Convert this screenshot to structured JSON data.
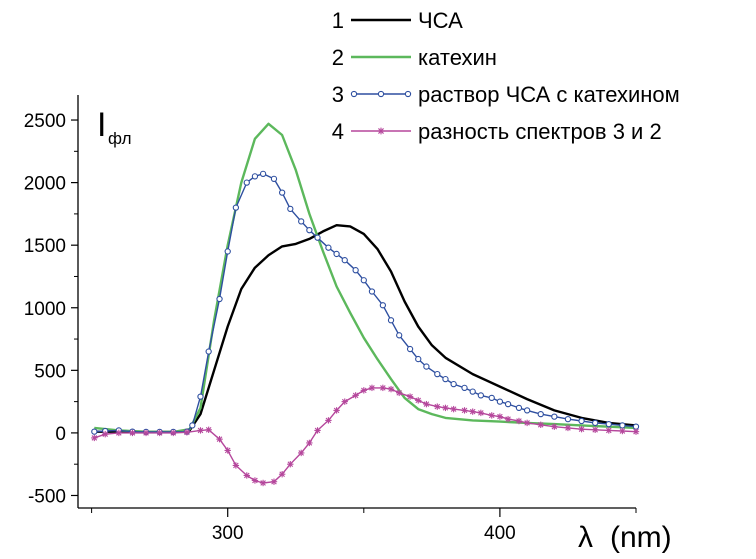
{
  "chart_data": {
    "type": "line",
    "title": "",
    "xlabel": "λ (nm)",
    "ylabel": "Iфл",
    "ylabel_main": "I",
    "ylabel_sub": "фл",
    "xlabel_symbol": "λ",
    "xlabel_unit": "(nm)",
    "xlim": [
      245,
      450
    ],
    "ylim": [
      -600,
      2700
    ],
    "x_ticks": [
      300,
      400
    ],
    "y_ticks": [
      -500,
      0,
      500,
      1000,
      1500,
      2000,
      2500
    ],
    "x_tick_labels": [
      "300",
      "400"
    ],
    "y_tick_labels": [
      "-500",
      "0",
      "500",
      "1000",
      "1500",
      "2000",
      "2500"
    ],
    "grid": false,
    "legend_position": "top-right",
    "series": [
      {
        "number": "1",
        "name": "ЧСА",
        "color": "#000000",
        "marker": "none",
        "points": [
          [
            251,
            10
          ],
          [
            260,
            10
          ],
          [
            270,
            8
          ],
          [
            280,
            8
          ],
          [
            286,
            20
          ],
          [
            290,
            150
          ],
          [
            295,
            500
          ],
          [
            300,
            850
          ],
          [
            305,
            1150
          ],
          [
            310,
            1320
          ],
          [
            315,
            1420
          ],
          [
            320,
            1490
          ],
          [
            325,
            1510
          ],
          [
            330,
            1550
          ],
          [
            335,
            1610
          ],
          [
            340,
            1660
          ],
          [
            345,
            1650
          ],
          [
            350,
            1590
          ],
          [
            355,
            1470
          ],
          [
            360,
            1290
          ],
          [
            365,
            1050
          ],
          [
            370,
            850
          ],
          [
            375,
            700
          ],
          [
            380,
            600
          ],
          [
            390,
            470
          ],
          [
            400,
            370
          ],
          [
            410,
            270
          ],
          [
            420,
            180
          ],
          [
            430,
            120
          ],
          [
            440,
            80
          ],
          [
            450,
            60
          ]
        ]
      },
      {
        "number": "2",
        "name": "катехин",
        "color": "#5cb85c",
        "marker": "none",
        "points": [
          [
            251,
            40
          ],
          [
            260,
            20
          ],
          [
            270,
            10
          ],
          [
            280,
            8
          ],
          [
            286,
            30
          ],
          [
            290,
            200
          ],
          [
            295,
            900
          ],
          [
            300,
            1500
          ],
          [
            305,
            2000
          ],
          [
            310,
            2350
          ],
          [
            315,
            2470
          ],
          [
            320,
            2380
          ],
          [
            325,
            2100
          ],
          [
            330,
            1750
          ],
          [
            335,
            1450
          ],
          [
            340,
            1170
          ],
          [
            345,
            960
          ],
          [
            350,
            760
          ],
          [
            355,
            590
          ],
          [
            360,
            430
          ],
          [
            365,
            280
          ],
          [
            370,
            190
          ],
          [
            375,
            150
          ],
          [
            380,
            120
          ],
          [
            390,
            100
          ],
          [
            400,
            90
          ],
          [
            410,
            80
          ],
          [
            420,
            70
          ],
          [
            430,
            60
          ],
          [
            440,
            50
          ],
          [
            450,
            40
          ]
        ]
      },
      {
        "number": "3",
        "name": "раствор ЧСА с катехином",
        "color": "#2e4fa0",
        "marker": "circle",
        "points": [
          [
            251,
            10
          ],
          [
            255,
            15
          ],
          [
            260,
            20
          ],
          [
            265,
            10
          ],
          [
            270,
            8
          ],
          [
            275,
            8
          ],
          [
            280,
            8
          ],
          [
            285,
            10
          ],
          [
            287,
            60
          ],
          [
            290,
            290
          ],
          [
            293,
            650
          ],
          [
            297,
            1070
          ],
          [
            300,
            1450
          ],
          [
            303,
            1800
          ],
          [
            307,
            2000
          ],
          [
            310,
            2050
          ],
          [
            313,
            2070
          ],
          [
            317,
            2030
          ],
          [
            320,
            1920
          ],
          [
            323,
            1790
          ],
          [
            327,
            1690
          ],
          [
            330,
            1620
          ],
          [
            333,
            1560
          ],
          [
            337,
            1480
          ],
          [
            340,
            1430
          ],
          [
            343,
            1380
          ],
          [
            347,
            1300
          ],
          [
            350,
            1220
          ],
          [
            353,
            1130
          ],
          [
            357,
            1020
          ],
          [
            360,
            900
          ],
          [
            363,
            780
          ],
          [
            367,
            670
          ],
          [
            370,
            590
          ],
          [
            373,
            530
          ],
          [
            377,
            470
          ],
          [
            380,
            430
          ],
          [
            383,
            390
          ],
          [
            387,
            360
          ],
          [
            390,
            330
          ],
          [
            393,
            300
          ],
          [
            397,
            280
          ],
          [
            400,
            250
          ],
          [
            403,
            230
          ],
          [
            407,
            200
          ],
          [
            410,
            180
          ],
          [
            415,
            150
          ],
          [
            420,
            130
          ],
          [
            425,
            110
          ],
          [
            430,
            95
          ],
          [
            435,
            80
          ],
          [
            440,
            70
          ],
          [
            445,
            60
          ],
          [
            450,
            50
          ]
        ]
      },
      {
        "number": "4",
        "name": "разность спектров 3 и 2",
        "color": "#b5479c",
        "marker": "asterisk",
        "points": [
          [
            251,
            -40
          ],
          [
            255,
            -10
          ],
          [
            260,
            0
          ],
          [
            265,
            0
          ],
          [
            270,
            0
          ],
          [
            275,
            0
          ],
          [
            280,
            0
          ],
          [
            285,
            5
          ],
          [
            290,
            20
          ],
          [
            293,
            25
          ],
          [
            297,
            -50
          ],
          [
            300,
            -140
          ],
          [
            303,
            -260
          ],
          [
            307,
            -340
          ],
          [
            310,
            -380
          ],
          [
            313,
            -400
          ],
          [
            317,
            -390
          ],
          [
            320,
            -330
          ],
          [
            323,
            -250
          ],
          [
            327,
            -160
          ],
          [
            330,
            -80
          ],
          [
            333,
            20
          ],
          [
            337,
            100
          ],
          [
            340,
            180
          ],
          [
            343,
            250
          ],
          [
            347,
            300
          ],
          [
            350,
            340
          ],
          [
            353,
            360
          ],
          [
            357,
            360
          ],
          [
            360,
            350
          ],
          [
            363,
            320
          ],
          [
            367,
            290
          ],
          [
            370,
            260
          ],
          [
            373,
            230
          ],
          [
            377,
            210
          ],
          [
            380,
            200
          ],
          [
            383,
            190
          ],
          [
            387,
            180
          ],
          [
            390,
            170
          ],
          [
            393,
            160
          ],
          [
            397,
            140
          ],
          [
            400,
            130
          ],
          [
            403,
            110
          ],
          [
            407,
            95
          ],
          [
            410,
            80
          ],
          [
            415,
            65
          ],
          [
            420,
            50
          ],
          [
            425,
            40
          ],
          [
            430,
            30
          ],
          [
            435,
            25
          ],
          [
            440,
            20
          ],
          [
            445,
            15
          ],
          [
            450,
            10
          ]
        ]
      }
    ]
  }
}
